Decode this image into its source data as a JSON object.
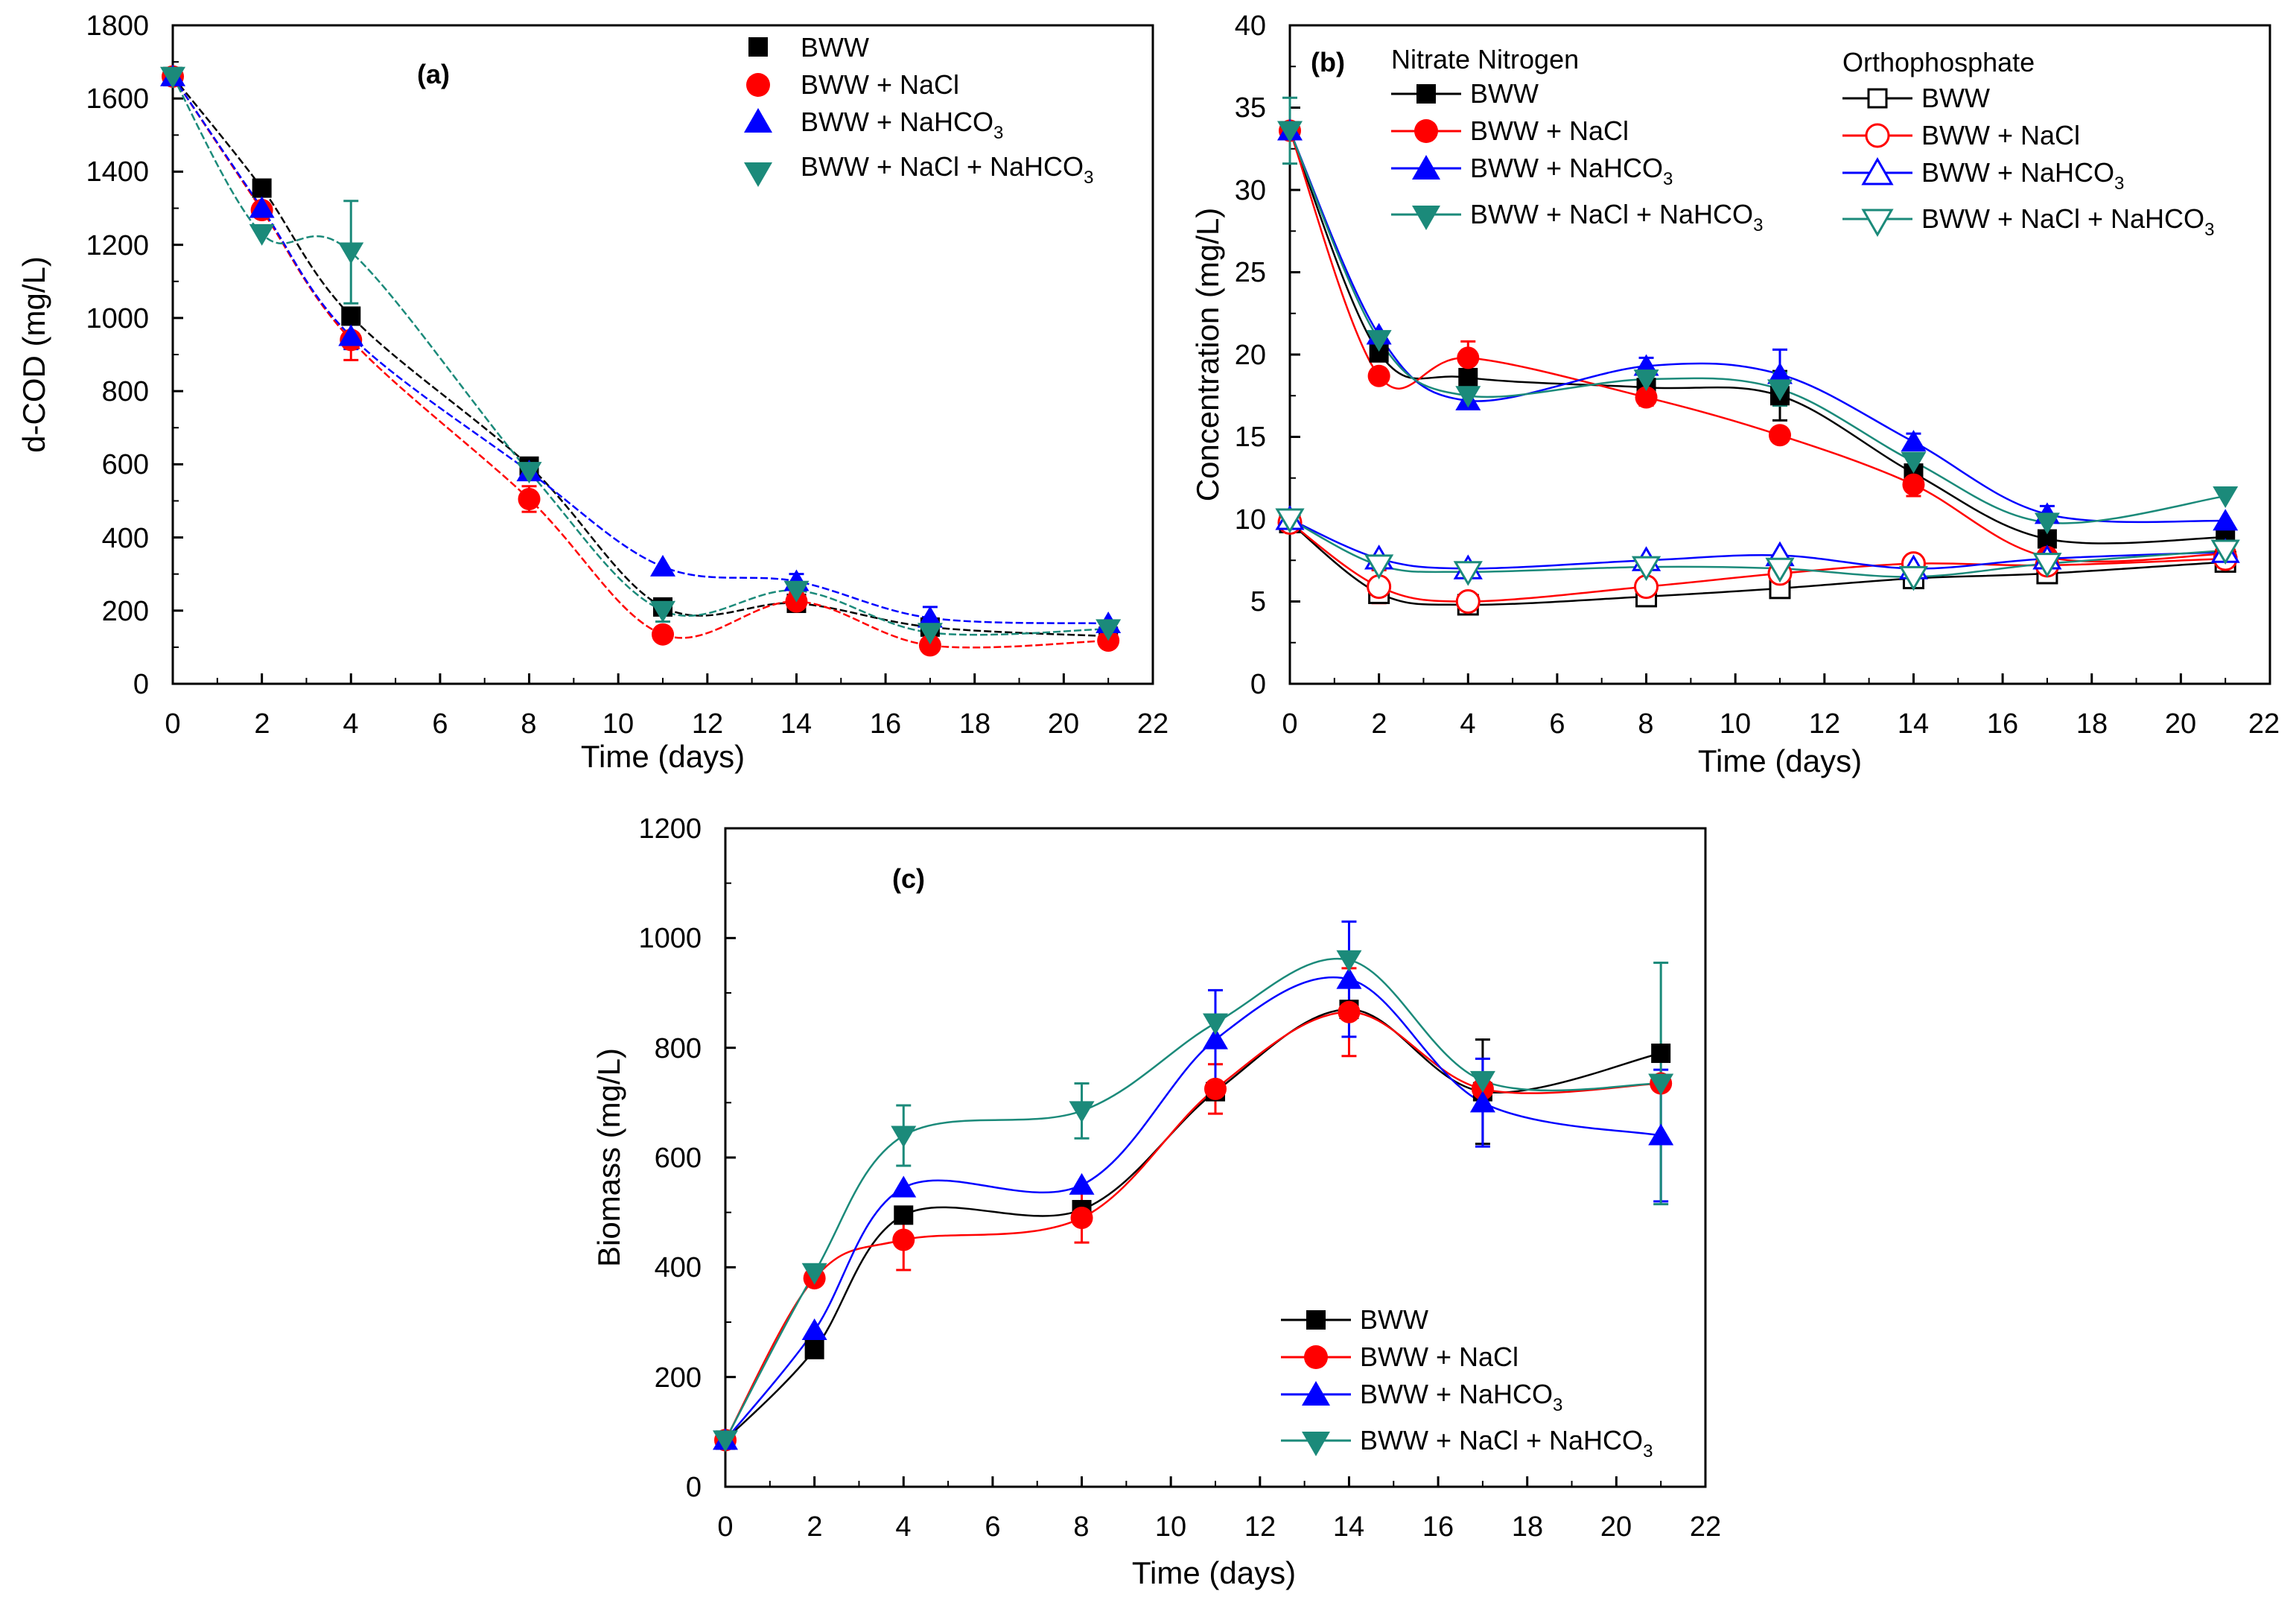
{
  "colors": {
    "bww": "#000000",
    "nacl": "#ff0000",
    "nahco3": "#0000ff",
    "both": "#1b8a7a"
  },
  "chart_data": [
    {
      "type": "line",
      "panel": "(a)",
      "xlabel": "Time (days)",
      "ylabel": "d-COD (mg/L)",
      "xlim": [
        0,
        22
      ],
      "ylim": [
        0,
        1800
      ],
      "xticks": [
        "0",
        "2",
        "4",
        "6",
        "8",
        "10",
        "12",
        "14",
        "16",
        "18",
        "20",
        "22"
      ],
      "yticks": [
        "0",
        "200",
        "400",
        "600",
        "800",
        "1000",
        "1200",
        "1400",
        "1600",
        "1800"
      ],
      "x": [
        0,
        2,
        4,
        8,
        11,
        14,
        17,
        21
      ],
      "legend_position": "top-right",
      "series": [
        {
          "name": "BWW",
          "values": [
            1660,
            1355,
            1005,
            595,
            210,
            220,
            155,
            130
          ],
          "errors": [
            0,
            0,
            0,
            0,
            0,
            0,
            0,
            0
          ]
        },
        {
          "name": "BWW + NaCl",
          "values": [
            1660,
            1295,
            940,
            505,
            135,
            225,
            105,
            118
          ],
          "errors": [
            0,
            0,
            55,
            35,
            0,
            25,
            0,
            0
          ]
        },
        {
          "name": "BWW + NaHCO",
          "sub": "3",
          "values": [
            1660,
            1300,
            950,
            580,
            320,
            280,
            180,
            165
          ],
          "errors": [
            0,
            0,
            35,
            0,
            0,
            20,
            30,
            0
          ]
        },
        {
          "name": "BWW + NaCl + NaHCO",
          "sub": "3",
          "values": [
            1660,
            1230,
            1180,
            580,
            200,
            255,
            140,
            150
          ],
          "errors": [
            0,
            0,
            140,
            0,
            30,
            0,
            30,
            0
          ]
        }
      ]
    },
    {
      "type": "line",
      "panel": "(b)",
      "xlabel": "Time (days)",
      "ylabel": "Concentration (mg/L)",
      "xlim": [
        0,
        22
      ],
      "ylim": [
        0,
        40
      ],
      "xticks": [
        "0",
        "2",
        "4",
        "6",
        "8",
        "10",
        "12",
        "14",
        "16",
        "18",
        "20",
        "22"
      ],
      "yticks": [
        "0",
        "5",
        "10",
        "15",
        "20",
        "25",
        "30",
        "35",
        "40"
      ],
      "x": [
        0,
        2,
        4,
        8,
        11,
        14,
        17,
        21
      ],
      "legend_groups": [
        "Nitrate Nitrogen",
        "Orthophosphate"
      ],
      "series": [
        {
          "name": "BWW",
          "group": "Nitrate Nitrogen",
          "filled": true,
          "values": [
            33.6,
            20.1,
            18.6,
            18.0,
            17.5,
            12.8,
            8.8,
            8.9
          ],
          "errors": [
            0,
            0.5,
            0.5,
            0.5,
            1.5,
            0.5,
            0,
            0
          ]
        },
        {
          "name": "BWW + NaCl",
          "group": "Nitrate Nitrogen",
          "filled": true,
          "values": [
            33.6,
            18.7,
            19.8,
            17.4,
            15.1,
            12.1,
            7.7,
            7.9
          ],
          "errors": [
            0,
            0,
            1.0,
            0.5,
            0,
            0.7,
            0,
            0
          ]
        },
        {
          "name": "BWW + NaHCO",
          "sub": "3",
          "group": "Nitrate Nitrogen",
          "filled": true,
          "values": [
            33.6,
            21.2,
            17.2,
            19.3,
            18.8,
            14.7,
            10.3,
            9.9
          ],
          "errors": [
            0,
            0,
            0.5,
            0.5,
            1.5,
            0.5,
            0.5,
            0
          ]
        },
        {
          "name": "BWW + NaCl + NaHCO",
          "sub": "3",
          "group": "Nitrate Nitrogen",
          "filled": true,
          "values": [
            33.6,
            20.9,
            17.5,
            18.5,
            17.9,
            13.5,
            9.8,
            11.4
          ],
          "errors": [
            2.0,
            0.5,
            0.5,
            0.5,
            1.0,
            0.5,
            0.5,
            0
          ]
        },
        {
          "name": "BWW",
          "group": "Orthophosphate",
          "filled": false,
          "values": [
            9.8,
            5.5,
            4.8,
            5.3,
            5.8,
            6.4,
            6.7,
            7.4
          ],
          "errors": [
            0,
            0.5,
            0.4,
            0,
            0,
            0,
            0,
            0
          ]
        },
        {
          "name": "BWW + NaCl",
          "group": "Orthophosphate",
          "filled": false,
          "values": [
            9.8,
            5.9,
            5.0,
            5.9,
            6.7,
            7.3,
            7.2,
            7.6
          ],
          "errors": [
            0,
            1.0,
            0.3,
            0.5,
            0,
            0,
            0,
            0
          ]
        },
        {
          "name": "BWW + NaHCO",
          "sub": "3",
          "group": "Orthophosphate",
          "filled": false,
          "values": [
            10.0,
            7.6,
            7.0,
            7.5,
            7.8,
            7.0,
            7.6,
            8.0
          ],
          "errors": [
            0,
            0,
            0,
            0,
            0,
            0,
            0,
            0
          ]
        },
        {
          "name": "BWW + NaCl + NaHCO",
          "sub": "3",
          "group": "Orthophosphate",
          "filled": false,
          "values": [
            10.0,
            7.2,
            6.8,
            7.1,
            7.0,
            6.5,
            7.3,
            8.1
          ],
          "errors": [
            0,
            0,
            0,
            0,
            0,
            0,
            0,
            0
          ]
        }
      ]
    },
    {
      "type": "line",
      "panel": "(c)",
      "xlabel": "Time (days)",
      "ylabel": "Biomass (mg/L)",
      "xlim": [
        0,
        22
      ],
      "ylim": [
        0,
        1200
      ],
      "xticks": [
        "0",
        "2",
        "4",
        "6",
        "8",
        "10",
        "12",
        "14",
        "16",
        "18",
        "20",
        "22"
      ],
      "yticks": [
        "0",
        "200",
        "400",
        "600",
        "800",
        "1000",
        "1200"
      ],
      "x": [
        0,
        2,
        4,
        8,
        11,
        14,
        17,
        21
      ],
      "legend_position": "bottom-right",
      "series": [
        {
          "name": "BWW",
          "values": [
            85,
            250,
            495,
            505,
            720,
            870,
            720,
            790
          ],
          "errors": [
            0,
            0,
            0,
            0,
            0,
            0,
            95,
            0
          ]
        },
        {
          "name": "BWW + NaCl",
          "values": [
            85,
            380,
            450,
            490,
            725,
            865,
            725,
            735
          ],
          "errors": [
            0,
            0,
            55,
            45,
            45,
            80,
            0,
            0
          ]
        },
        {
          "name": "BWW + NaHCO",
          "sub": "3",
          "values": [
            85,
            285,
            545,
            550,
            815,
            925,
            700,
            640
          ],
          "errors": [
            0,
            0,
            0,
            0,
            90,
            105,
            80,
            120
          ]
        },
        {
          "name": "BWW + NaCl + NaHCO",
          "sub": "3",
          "values": [
            85,
            390,
            640,
            685,
            845,
            960,
            740,
            735
          ],
          "errors": [
            0,
            0,
            55,
            50,
            0,
            0,
            0,
            220
          ]
        }
      ]
    }
  ]
}
